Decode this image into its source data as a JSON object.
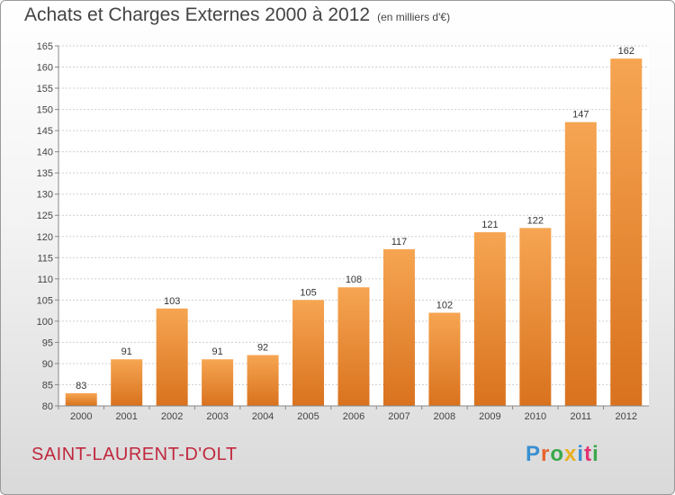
{
  "title": "Achats et Charges Externes 2000 à 2012",
  "unit": "(en milliers d'€)",
  "commune": "SAINT-LAURENT-D'OLT",
  "logo": {
    "text": "Proxiti",
    "colors": [
      "#3a8fd0",
      "#e8622c",
      "#3aa84a",
      "#e8b020",
      "#3a8fd0",
      "#e03070",
      "#3aa84a"
    ]
  },
  "bar_color": "#ee8a34",
  "chart_data": {
    "type": "bar",
    "title": "Achats et Charges Externes 2000 à 2012",
    "subtitle": "(en milliers d'€)",
    "xlabel": "",
    "ylabel": "",
    "categories": [
      "2000",
      "2001",
      "2002",
      "2003",
      "2004",
      "2005",
      "2006",
      "2007",
      "2008",
      "2009",
      "2010",
      "2011",
      "2012"
    ],
    "values": [
      83,
      91,
      103,
      91,
      92,
      105,
      108,
      117,
      102,
      121,
      122,
      147,
      162
    ],
    "ylim": [
      80,
      165
    ],
    "yticks": [
      80,
      85,
      90,
      95,
      100,
      105,
      110,
      115,
      120,
      125,
      130,
      135,
      140,
      145,
      150,
      155,
      160,
      165
    ],
    "grid": true,
    "data_labels": true
  }
}
